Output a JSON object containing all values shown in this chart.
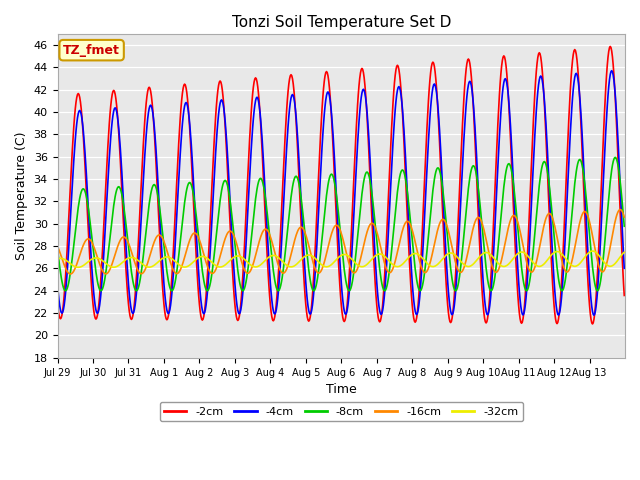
{
  "title": "Tonzi Soil Temperature Set D",
  "xlabel": "Time",
  "ylabel": "Soil Temperature (C)",
  "ylim": [
    18,
    47
  ],
  "yticks": [
    18,
    20,
    22,
    24,
    26,
    28,
    30,
    32,
    34,
    36,
    38,
    40,
    42,
    44,
    46
  ],
  "bg_color": "#e8e8e8",
  "series_order": [
    "-2cm",
    "-4cm",
    "-8cm",
    "-16cm",
    "-32cm"
  ],
  "series": {
    "-2cm": {
      "color": "#ff0000",
      "linewidth": 1.2
    },
    "-4cm": {
      "color": "#0000ff",
      "linewidth": 1.2
    },
    "-8cm": {
      "color": "#00cc00",
      "linewidth": 1.2
    },
    "-16cm": {
      "color": "#ff8800",
      "linewidth": 1.2
    },
    "-32cm": {
      "color": "#eeee00",
      "linewidth": 1.2
    }
  },
  "xtick_labels": [
    "Jul 29",
    "Jul 30",
    "Jul 31",
    "Aug 1",
    "Aug 2",
    "Aug 3",
    "Aug 4",
    "Aug 5",
    "Aug 6",
    "Aug 7",
    "Aug 8",
    "Aug 9",
    "Aug 10",
    "Aug 11",
    "Aug 12",
    "Aug 13"
  ],
  "n_days": 16,
  "pts_per_day": 48,
  "legend_label": "TZ_fmet",
  "legend_bg": "#ffffcc",
  "legend_border": "#cc9900"
}
